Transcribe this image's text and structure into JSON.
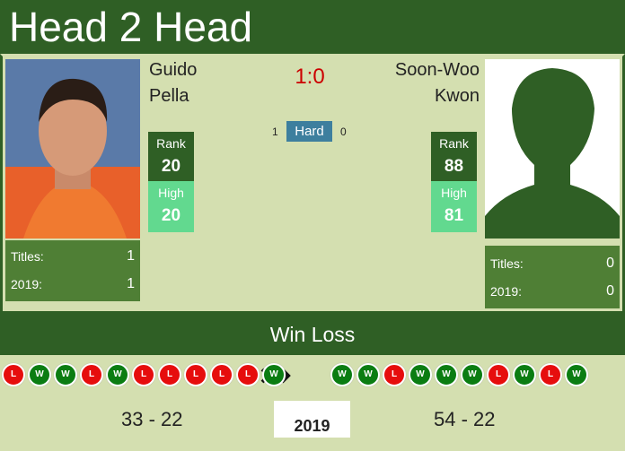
{
  "header": {
    "title": "Head 2 Head"
  },
  "players": [
    {
      "first_name": "Guido",
      "last_name": "Pella",
      "rank_label": "Rank",
      "rank": "20",
      "high_label": "High",
      "high": "20",
      "stats": [
        {
          "label": "Titles:",
          "value": "1"
        },
        {
          "label": "2019:",
          "value": "1"
        }
      ],
      "form": [
        "L",
        "W",
        "W",
        "L",
        "W",
        "L",
        "L",
        "L",
        "L",
        "L",
        "W"
      ],
      "record": "33 - 22"
    },
    {
      "first_name": "Soon-Woo",
      "last_name": "Kwon",
      "rank_label": "Rank",
      "rank": "88",
      "high_label": "High",
      "high": "81",
      "stats": [
        {
          "label": "Titles:",
          "value": "0"
        },
        {
          "label": "2019:",
          "value": "0"
        }
      ],
      "form": [
        "W",
        "W",
        "L",
        "W",
        "W",
        "W",
        "L",
        "W",
        "L",
        "W"
      ],
      "record": "54 - 22"
    }
  ],
  "score": "1:0",
  "surface": {
    "label": "Hard",
    "left": "1",
    "right": "0"
  },
  "section": "Win Loss",
  "year": "2019"
}
